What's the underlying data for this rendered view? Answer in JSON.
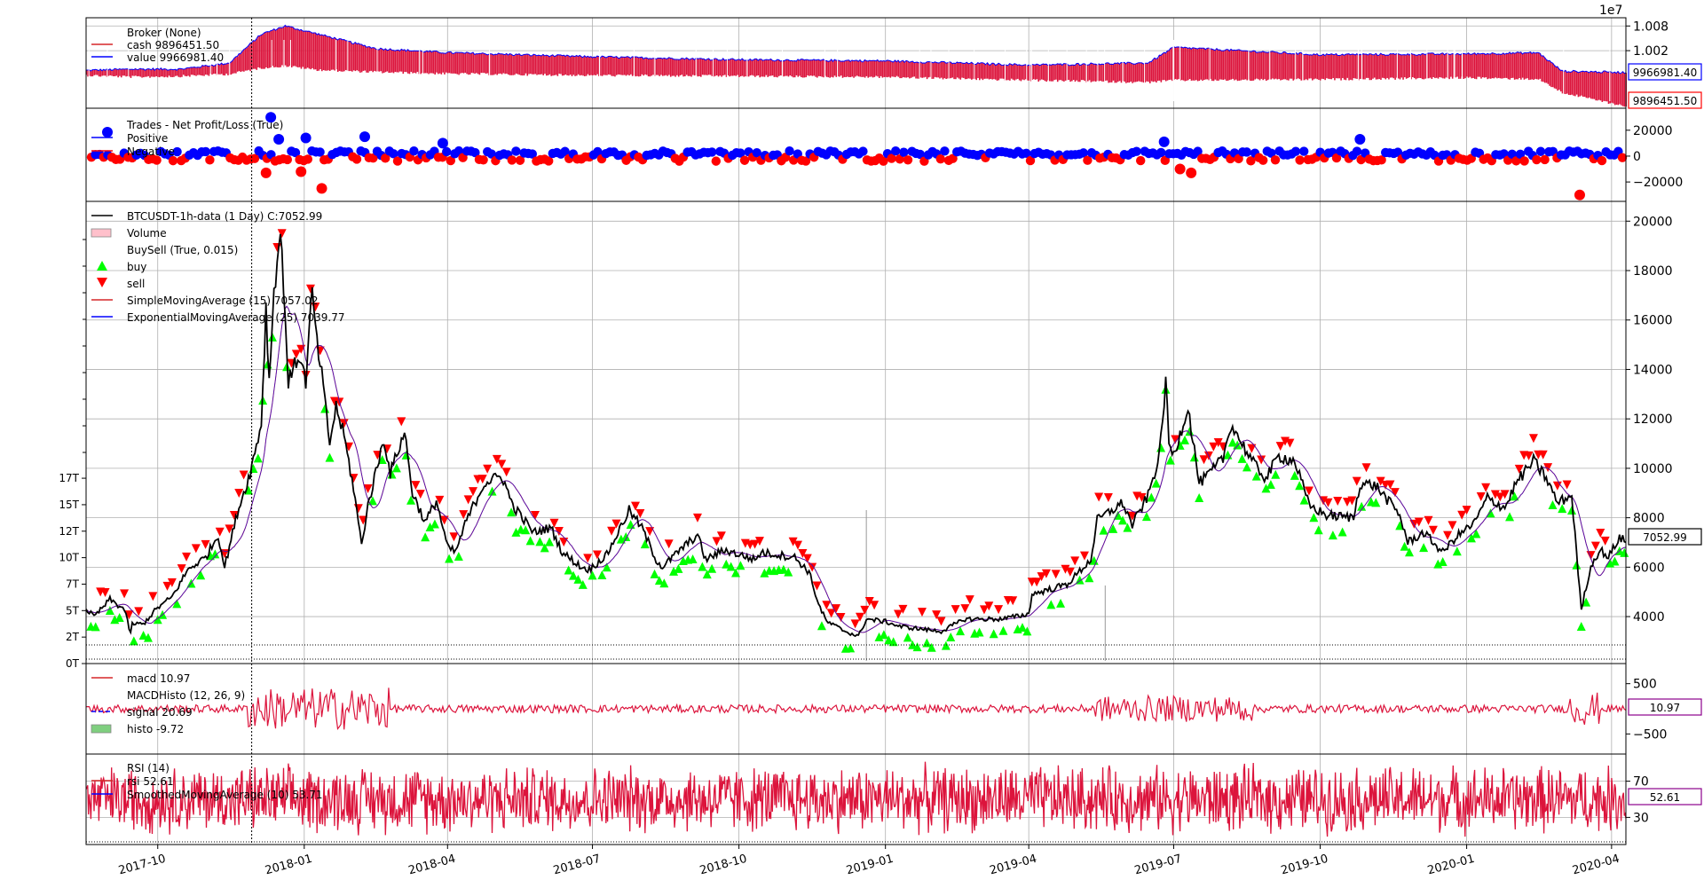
{
  "chart_data": {
    "type": "line",
    "exponent_label": "1e7",
    "time": {
      "start": "2017-08-17",
      "end": "2020-04-10",
      "cursor_date": "2017-11-29",
      "ticks": [
        {
          "date": "2017-10-01",
          "label": "2017-10"
        },
        {
          "date": "2018-01-01",
          "label": "2018-01"
        },
        {
          "date": "2018-04-01",
          "label": "2018-04"
        },
        {
          "date": "2018-07-01",
          "label": "2018-07"
        },
        {
          "date": "2018-10-01",
          "label": "2018-10"
        },
        {
          "date": "2019-01-01",
          "label": "2019-01"
        },
        {
          "date": "2019-04-01",
          "label": "2019-04"
        },
        {
          "date": "2019-07-01",
          "label": "2019-07"
        },
        {
          "date": "2019-10-01",
          "label": "2019-10"
        },
        {
          "date": "2020-01-01",
          "label": "2020-01"
        },
        {
          "date": "2020-04-01",
          "label": "2020-04"
        }
      ]
    },
    "panels": {
      "broker": {
        "legend": [
          {
            "label": "Broker (None)",
            "color": "none"
          },
          {
            "label": "cash 9896451.50",
            "color": "#d62728"
          },
          {
            "label": "value 9966981.40",
            "color": "#0000ff"
          }
        ],
        "yticks": [
          {
            "value": 10080000,
            "label": "1.008"
          },
          {
            "value": 10020000,
            "label": "1.002"
          }
        ],
        "ylim": [
          9880000,
          10100000
        ],
        "cash_last": "9896451.50",
        "value_last": "9966981.40",
        "series_cash": [
          [
            "2017-08-17",
            9972000
          ],
          [
            "2017-09-15",
            9968000
          ],
          [
            "2017-10-15",
            9970000
          ],
          [
            "2017-11-15",
            9975000
          ],
          [
            "2017-12-05",
            9990000
          ],
          [
            "2017-12-20",
            9995000
          ],
          [
            "2018-01-10",
            9985000
          ],
          [
            "2018-02-15",
            9980000
          ],
          [
            "2018-04-01",
            9976000
          ],
          [
            "2018-07-01",
            9972000
          ],
          [
            "2018-10-01",
            9970000
          ],
          [
            "2019-01-01",
            9968000
          ],
          [
            "2019-04-01",
            9960000
          ],
          [
            "2019-06-15",
            9955000
          ],
          [
            "2019-07-01",
            9960000
          ],
          [
            "2019-10-01",
            9962000
          ],
          [
            "2020-01-01",
            9966000
          ],
          [
            "2020-02-15",
            9963000
          ],
          [
            "2020-03-01",
            9930000
          ],
          [
            "2020-04-10",
            9896451.5
          ]
        ],
        "series_value": [
          [
            "2017-08-17",
            9972000
          ],
          [
            "2017-09-15",
            9975000
          ],
          [
            "2017-10-15",
            9975000
          ],
          [
            "2017-11-15",
            9990000
          ],
          [
            "2017-12-05",
            10060000
          ],
          [
            "2017-12-20",
            10080000
          ],
          [
            "2018-01-10",
            10060000
          ],
          [
            "2018-02-15",
            10025000
          ],
          [
            "2018-04-01",
            10015000
          ],
          [
            "2018-07-01",
            10005000
          ],
          [
            "2018-10-01",
            9998000
          ],
          [
            "2019-01-01",
            9995000
          ],
          [
            "2019-04-01",
            9985000
          ],
          [
            "2019-06-15",
            9990000
          ],
          [
            "2019-07-01",
            10028000
          ],
          [
            "2019-10-01",
            10010000
          ],
          [
            "2020-01-01",
            10012000
          ],
          [
            "2020-02-15",
            10015000
          ],
          [
            "2020-03-01",
            9970000
          ],
          [
            "2020-04-10",
            9966981.4
          ]
        ]
      },
      "trades": {
        "legend": [
          {
            "label": "Trades - Net Profit/Loss (True)",
            "color": "none"
          },
          {
            "label": "Positive",
            "color": "#0000ff"
          },
          {
            "label": "Negative",
            "color": "#ff0000"
          }
        ],
        "yticks": [
          {
            "value": 20000,
            "label": "20000"
          },
          {
            "value": 0,
            "label": "0"
          },
          {
            "value": -20000,
            "label": "−20000"
          }
        ],
        "ylim": [
          -35000,
          37000
        ],
        "outliers": [
          [
            "2017-12-11",
            30000
          ],
          [
            "2017-12-16",
            13000
          ],
          [
            "2018-01-02",
            14000
          ],
          [
            "2018-02-08",
            15000
          ],
          [
            "2018-03-29",
            10000
          ],
          [
            "2019-06-25",
            11000
          ],
          [
            "2019-10-26",
            13000
          ],
          [
            "2017-12-08",
            -13000
          ],
          [
            "2017-12-30",
            -12000
          ],
          [
            "2018-01-12",
            -25000
          ],
          [
            "2019-07-05",
            -10000
          ],
          [
            "2019-07-12",
            -13000
          ],
          [
            "2020-03-12",
            -30000
          ]
        ]
      },
      "price": {
        "legend": [
          {
            "label": "BTCUSDT-1h-data (1 Day) C:7052.99",
            "color": "#000000",
            "kind": "line"
          },
          {
            "label": "Volume",
            "color": "#ffc0cb",
            "kind": "box"
          },
          {
            "label": "BuySell (True, 0.015)",
            "color": "none"
          },
          {
            "label": "buy",
            "color": "#00ff00",
            "kind": "up"
          },
          {
            "label": "sell",
            "color": "#ff0000",
            "kind": "down"
          },
          {
            "label": "SimpleMovingAverage (15) 7057.02",
            "color": "#d62728",
            "kind": "line"
          },
          {
            "label": "ExponentialMovingAverage (25) 7039.77",
            "color": "#0000ff",
            "kind": "line"
          }
        ],
        "yticks": [
          20000,
          18000,
          16000,
          14000,
          12000,
          10000,
          8000,
          6000,
          4000
        ],
        "ylim": [
          2100,
          20800
        ],
        "volume_ticks": [
          "0T",
          "2T",
          "5T",
          "7T",
          "10T",
          "12T",
          "15T",
          "17T"
        ],
        "volume_max": 17,
        "close_last": "7052.99",
        "series_close": [
          [
            "2017-08-17",
            4300
          ],
          [
            "2017-08-22",
            4000
          ],
          [
            "2017-08-28",
            4400
          ],
          [
            "2017-09-01",
            4700
          ],
          [
            "2017-09-05",
            4500
          ],
          [
            "2017-09-10",
            4300
          ],
          [
            "2017-09-14",
            3300
          ],
          [
            "2017-09-15",
            3700
          ],
          [
            "2017-09-22",
            3700
          ],
          [
            "2017-09-30",
            4300
          ],
          [
            "2017-10-10",
            4800
          ],
          [
            "2017-10-20",
            5900
          ],
          [
            "2017-10-31",
            6400
          ],
          [
            "2017-11-08",
            7300
          ],
          [
            "2017-11-12",
            6000
          ],
          [
            "2017-11-20",
            8200
          ],
          [
            "2017-11-28",
            9800
          ],
          [
            "2017-12-05",
            11800
          ],
          [
            "2017-12-08",
            16500
          ],
          [
            "2017-12-10",
            13500
          ],
          [
            "2017-12-13",
            17200
          ],
          [
            "2017-12-17",
            19500
          ],
          [
            "2017-12-19",
            17500
          ],
          [
            "2017-12-22",
            13500
          ],
          [
            "2017-12-25",
            14000
          ],
          [
            "2017-12-29",
            14600
          ],
          [
            "2018-01-02",
            13500
          ],
          [
            "2018-01-06",
            17200
          ],
          [
            "2018-01-09",
            15000
          ],
          [
            "2018-01-12",
            13800
          ],
          [
            "2018-01-17",
            11000
          ],
          [
            "2018-01-21",
            12500
          ],
          [
            "2018-01-26",
            11300
          ],
          [
            "2018-02-01",
            9200
          ],
          [
            "2018-02-06",
            6900
          ],
          [
            "2018-02-10",
            8500
          ],
          [
            "2018-02-20",
            11200
          ],
          [
            "2018-02-24",
            9800
          ],
          [
            "2018-03-05",
            11500
          ],
          [
            "2018-03-10",
            9000
          ],
          [
            "2018-03-18",
            7800
          ],
          [
            "2018-03-25",
            8700
          ],
          [
            "2018-04-01",
            6800
          ],
          [
            "2018-04-06",
            6600
          ],
          [
            "2018-04-13",
            7900
          ],
          [
            "2018-04-24",
            9400
          ],
          [
            "2018-05-05",
            9700
          ],
          [
            "2018-05-12",
            8500
          ],
          [
            "2018-05-25",
            7400
          ],
          [
            "2018-06-05",
            7600
          ],
          [
            "2018-06-12",
            6600
          ],
          [
            "2018-06-24",
            6000
          ],
          [
            "2018-06-29",
            5900
          ],
          [
            "2018-07-10",
            6500
          ],
          [
            "2018-07-24",
            8300
          ],
          [
            "2018-08-01",
            7600
          ],
          [
            "2018-08-10",
            6300
          ],
          [
            "2018-08-14",
            6000
          ],
          [
            "2018-08-25",
            6700
          ],
          [
            "2018-09-05",
            7300
          ],
          [
            "2018-09-10",
            6300
          ],
          [
            "2018-09-22",
            6700
          ],
          [
            "2018-10-11",
            6300
          ],
          [
            "2018-10-15",
            6600
          ],
          [
            "2018-11-05",
            6400
          ],
          [
            "2018-11-14",
            5800
          ],
          [
            "2018-11-20",
            4500
          ],
          [
            "2018-11-25",
            3800
          ],
          [
            "2018-12-07",
            3400
          ],
          [
            "2018-12-15",
            3200
          ],
          [
            "2018-12-20",
            3900
          ],
          [
            "2019-01-01",
            3800
          ],
          [
            "2019-01-10",
            3600
          ],
          [
            "2019-02-05",
            3400
          ],
          [
            "2019-02-20",
            3900
          ],
          [
            "2019-03-15",
            3900
          ],
          [
            "2019-04-01",
            4100
          ],
          [
            "2019-04-03",
            4900
          ],
          [
            "2019-04-25",
            5300
          ],
          [
            "2019-05-10",
            6300
          ],
          [
            "2019-05-14",
            7900
          ],
          [
            "2019-05-30",
            8600
          ],
          [
            "2019-06-05",
            7700
          ],
          [
            "2019-06-15",
            8900
          ],
          [
            "2019-06-22",
            10500
          ],
          [
            "2019-06-26",
            13500
          ],
          [
            "2019-06-28",
            11000
          ],
          [
            "2019-07-01",
            10500
          ],
          [
            "2019-07-10",
            12500
          ],
          [
            "2019-07-17",
            9400
          ],
          [
            "2019-07-24",
            9800
          ],
          [
            "2019-08-01",
            10400
          ],
          [
            "2019-08-06",
            11800
          ],
          [
            "2019-08-20",
            10200
          ],
          [
            "2019-08-28",
            9600
          ],
          [
            "2019-09-05",
            10500
          ],
          [
            "2019-09-15",
            10300
          ],
          [
            "2019-09-24",
            8500
          ],
          [
            "2019-10-05",
            8100
          ],
          [
            "2019-10-22",
            8000
          ],
          [
            "2019-10-26",
            9400
          ],
          [
            "2019-11-05",
            9300
          ],
          [
            "2019-11-20",
            8100
          ],
          [
            "2019-11-25",
            7000
          ],
          [
            "2019-12-05",
            7400
          ],
          [
            "2019-12-17",
            6600
          ],
          [
            "2019-12-25",
            7200
          ],
          [
            "2020-01-06",
            7800
          ],
          [
            "2020-01-14",
            8800
          ],
          [
            "2020-01-25",
            8400
          ],
          [
            "2020-02-01",
            9400
          ],
          [
            "2020-02-12",
            10300
          ],
          [
            "2020-02-20",
            9600
          ],
          [
            "2020-02-27",
            8600
          ],
          [
            "2020-03-07",
            8900
          ],
          [
            "2020-03-12",
            5000
          ],
          [
            "2020-03-13",
            4300
          ],
          [
            "2020-03-16",
            5200
          ],
          [
            "2020-03-20",
            6200
          ],
          [
            "2020-03-25",
            6700
          ],
          [
            "2020-03-30",
            6400
          ],
          [
            "2020-04-06",
            7200
          ],
          [
            "2020-04-10",
            7052.99
          ]
        ]
      },
      "macd": {
        "legend": [
          {
            "label": "macd 10.97",
            "color": "#d62728",
            "kind": "line"
          },
          {
            "label": "MACDHisto (12, 26, 9)",
            "color": "none"
          },
          {
            "label": "signal 20.69",
            "color": "#0000ff",
            "kind": "dash"
          },
          {
            "label": "histo -9.72",
            "color": "#7fcf7f",
            "kind": "box"
          }
        ],
        "yticks": [
          {
            "value": 500,
            "label": "500"
          },
          {
            "value": -500,
            "label": "−500"
          }
        ],
        "ylim": [
          -900,
          900
        ],
        "last": "10.97"
      },
      "rsi": {
        "legend": [
          {
            "label": "RSI (14)",
            "color": "none"
          },
          {
            "label": "rsi 52.61",
            "color": "#d62728",
            "kind": "line"
          },
          {
            "label": "SmoothedMovingAverage (10) 53.71",
            "color": "#0000ff",
            "kind": "line"
          }
        ],
        "yticks": [
          {
            "value": 70,
            "label": "70"
          },
          {
            "value": 30,
            "label": "30"
          }
        ],
        "ylim": [
          0,
          100
        ],
        "last": "52.61"
      }
    }
  }
}
